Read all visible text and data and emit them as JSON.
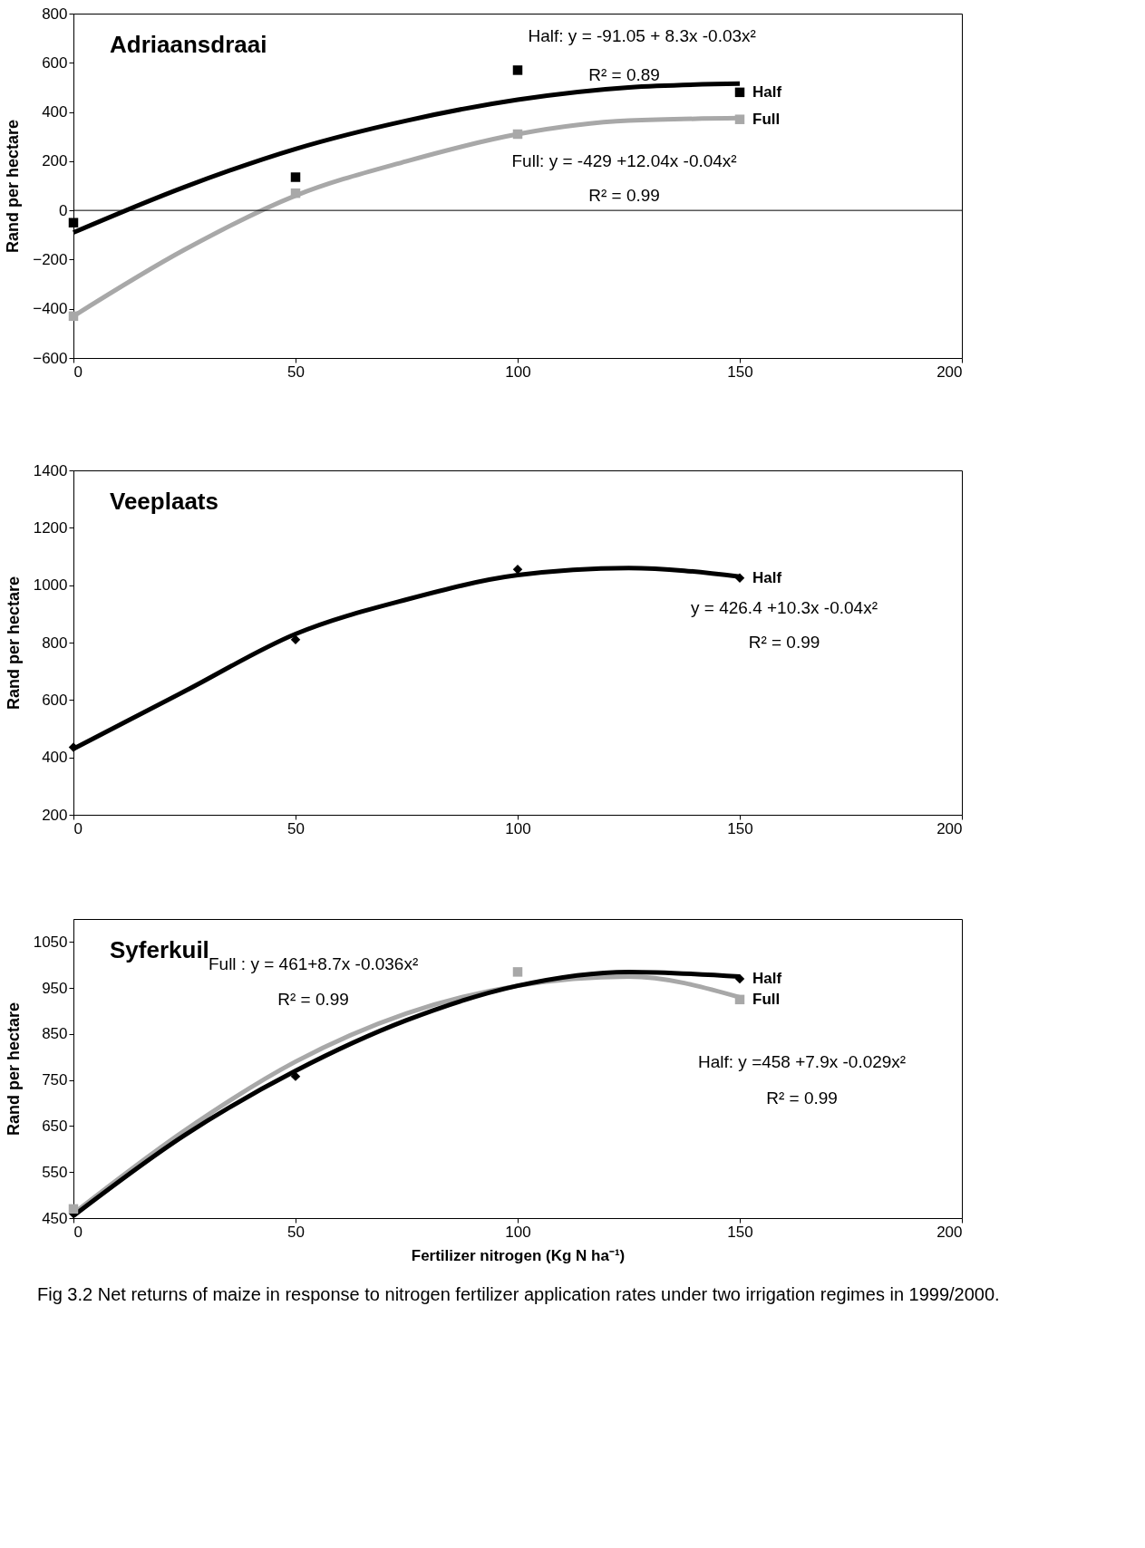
{
  "chart_data": [
    {
      "type": "scatter",
      "title": "Adriaansdraai",
      "ylabel": "Rand per hectare",
      "xlim": [
        0,
        200
      ],
      "xticks": [
        0,
        50,
        100,
        150,
        200
      ],
      "ylim": [
        -600,
        800
      ],
      "yticks": [
        -600,
        -400,
        -200,
        0,
        200,
        400,
        600,
        800
      ],
      "grid": false,
      "legend": false,
      "ref_lines": [
        {
          "axis": "y",
          "value": 0
        }
      ],
      "series": [
        {
          "type": "line",
          "color": "#000000",
          "x": [
            0,
            25,
            50,
            75,
            100,
            125,
            150
          ],
          "values": [
            -90,
            95,
            250,
            365,
            450,
            500,
            515
          ]
        },
        {
          "type": "line",
          "color": "#a8a8a8",
          "x": [
            0,
            25,
            50,
            75,
            100,
            125,
            150
          ],
          "values": [
            -430,
            -160,
            60,
            200,
            310,
            365,
            375
          ]
        },
        {
          "name": "Half",
          "marker": "square",
          "color": "#000000",
          "x": [
            0,
            50,
            100,
            150
          ],
          "values": [
            -50,
            135,
            570,
            480
          ]
        },
        {
          "name": "Full",
          "marker": "square",
          "color": "#a8a8a8",
          "x": [
            0,
            50,
            100,
            150
          ],
          "values": [
            -430,
            70,
            310,
            370
          ]
        }
      ],
      "annotations": [
        "Half: y = -91.05 + 8.3x -0.03x²",
        "R² = 0.89",
        "Full: y = -429 +12.04x -0.04x²",
        "R² = 0.99"
      ]
    },
    {
      "type": "scatter",
      "title": "Veeplaats",
      "ylabel": "Rand per hectare",
      "xlim": [
        0,
        200
      ],
      "xticks": [
        0,
        50,
        100,
        150,
        200
      ],
      "ylim": [
        200,
        1400
      ],
      "yticks": [
        200,
        400,
        600,
        800,
        1000,
        1200,
        1400
      ],
      "grid": false,
      "legend": false,
      "series": [
        {
          "type": "line",
          "color": "#000000",
          "x": [
            0,
            25,
            50,
            75,
            100,
            125,
            150
          ],
          "values": [
            430,
            630,
            830,
            950,
            1035,
            1060,
            1030
          ]
        },
        {
          "name": "Half",
          "marker": "diamond",
          "color": "#000000",
          "x": [
            0,
            50,
            100,
            150
          ],
          "values": [
            435,
            810,
            1055,
            1025
          ]
        }
      ],
      "annotations": [
        "y = 426.4 +10.3x -0.04x²",
        "R² = 0.99"
      ]
    },
    {
      "type": "scatter",
      "title": "Syferkuil",
      "ylabel": "Rand per hectare",
      "xlabel": "Fertilizer nitrogen (Kg N ha⁻¹)",
      "xlim": [
        0,
        200
      ],
      "xticks": [
        0,
        50,
        100,
        150,
        200
      ],
      "ylim": [
        450,
        1100
      ],
      "yticks": [
        450,
        550,
        650,
        750,
        850,
        950,
        1050
      ],
      "grid": false,
      "legend": false,
      "series": [
        {
          "type": "line",
          "color": "#a8a8a8",
          "x": [
            0,
            25,
            50,
            75,
            100,
            125,
            150
          ],
          "values": [
            460,
            640,
            790,
            895,
            955,
            975,
            930
          ]
        },
        {
          "type": "line",
          "color": "#000000",
          "x": [
            0,
            25,
            50,
            75,
            100,
            125,
            150
          ],
          "values": [
            455,
            630,
            770,
            880,
            955,
            985,
            975
          ]
        },
        {
          "name": "Half",
          "marker": "diamond",
          "color": "#000000",
          "x": [
            0,
            50,
            100,
            150
          ],
          "values": [
            460,
            758,
            null,
            970
          ]
        },
        {
          "name": "Full",
          "marker": "square",
          "color": "#a8a8a8",
          "x": [
            0,
            50,
            100,
            150
          ],
          "values": [
            470,
            null,
            985,
            925
          ]
        }
      ],
      "annotations": [
        "Full : y = 461+8.7x -0.036x²",
        "R² = 0.99",
        "Half: y =458 +7.9x  -0.029x²",
        "R² = 0.99",
        "Fig 3.2 Net returns of maize in response to nitrogen fertilizer application rates under two irrigation regimes in 1999/2000."
      ]
    }
  ]
}
